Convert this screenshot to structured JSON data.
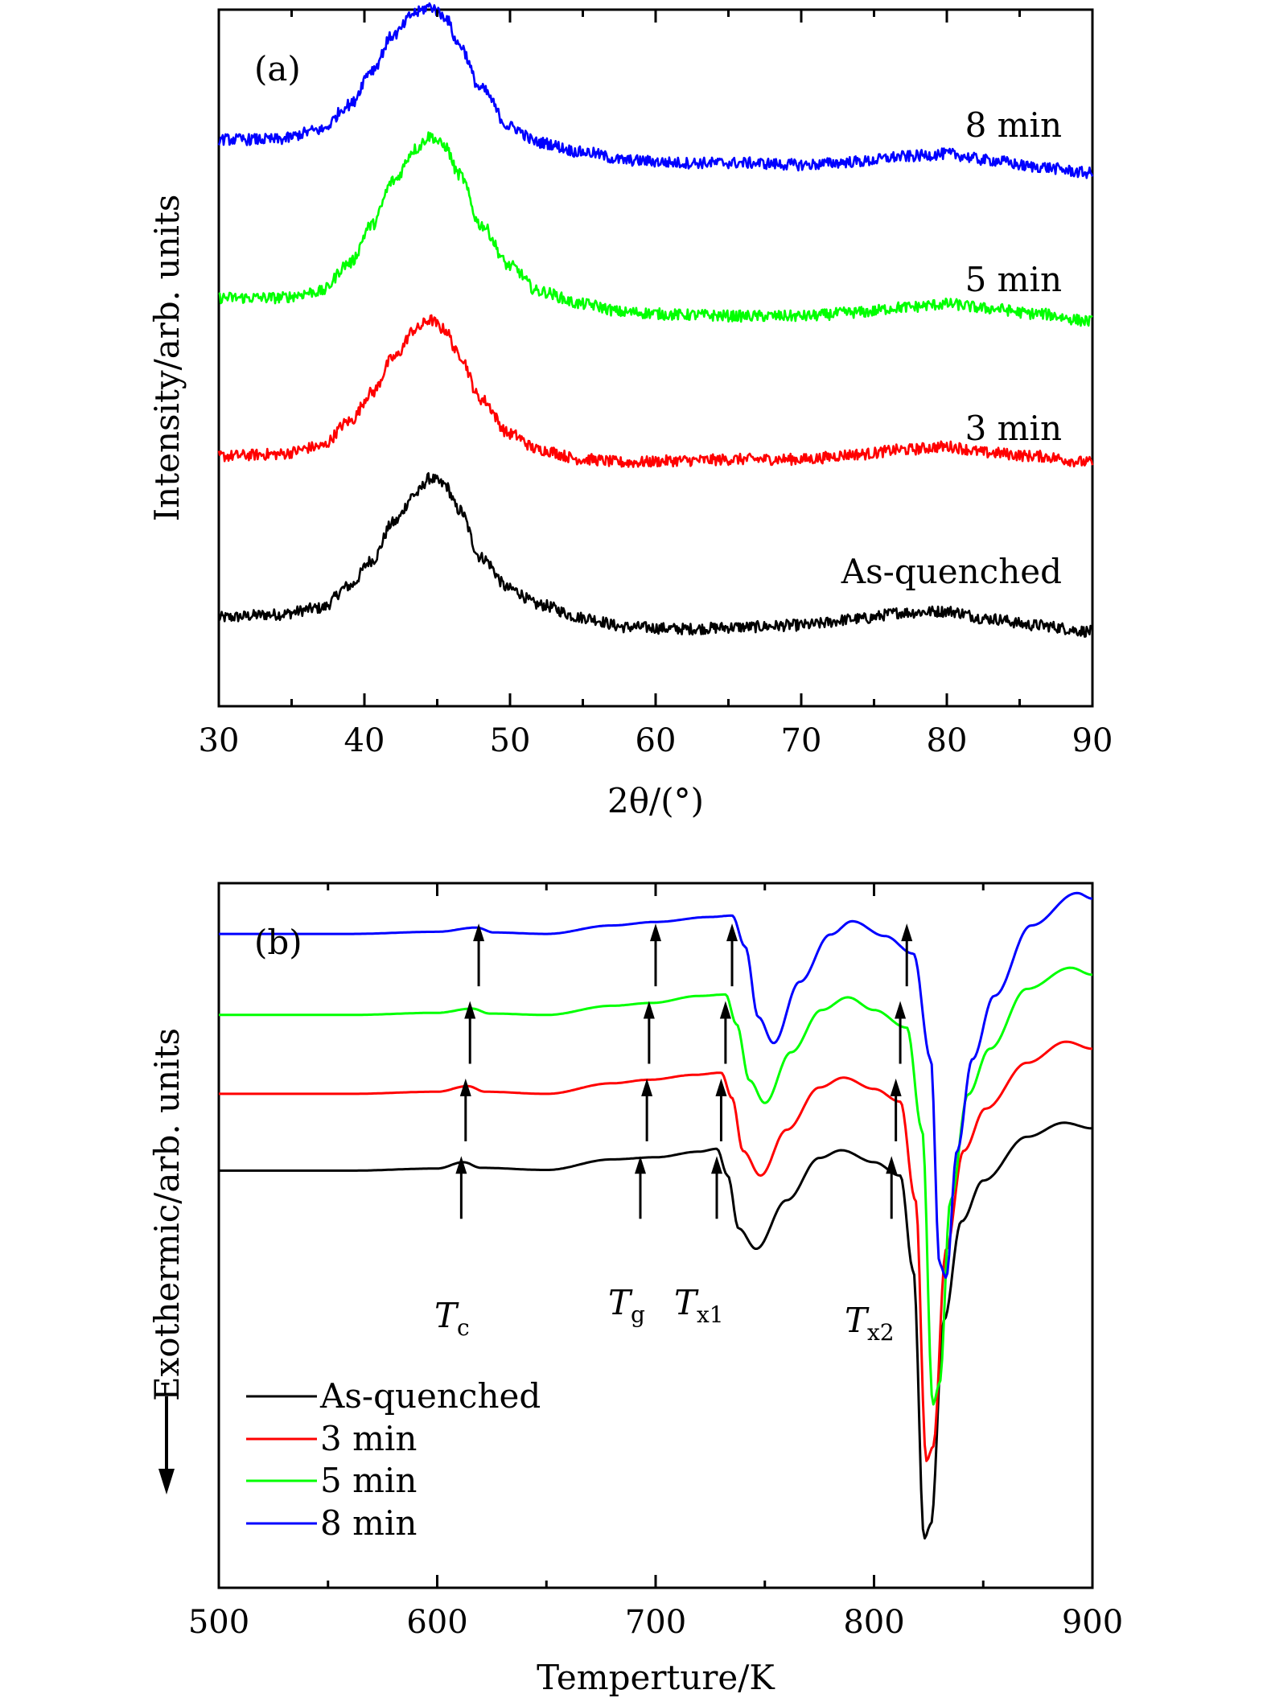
{
  "chart_data": [
    {
      "type": "line",
      "panel_label": "(a)",
      "xlabel": "2θ/(°)",
      "ylabel": "Intensity/arb. units",
      "xlim": [
        30,
        90
      ],
      "ylim": [
        0,
        11
      ],
      "x_ticks": [
        30,
        40,
        50,
        60,
        70,
        80,
        90
      ],
      "x_tick_labels": [
        "30",
        "40",
        "50",
        "60",
        "70",
        "80",
        "90"
      ],
      "y_ticks_shown": false,
      "grid": false,
      "series": [
        {
          "name": "As-quenched",
          "color": "#000000",
          "x": [
            30,
            34,
            37,
            39,
            40.5,
            42,
            43.5,
            44.5,
            45.5,
            46.5,
            48,
            50,
            52,
            55,
            58,
            62,
            66,
            70,
            74,
            77,
            80,
            83,
            86,
            90
          ],
          "values": [
            1.4,
            1.45,
            1.55,
            1.9,
            2.3,
            2.9,
            3.35,
            3.6,
            3.5,
            3.1,
            2.35,
            1.85,
            1.6,
            1.4,
            1.25,
            1.22,
            1.25,
            1.28,
            1.38,
            1.48,
            1.5,
            1.38,
            1.28,
            1.18
          ]
        },
        {
          "name": "3 min",
          "color": "#ff0000",
          "x": [
            30,
            34,
            37,
            39,
            40.5,
            42,
            43.5,
            44.5,
            45.5,
            46.5,
            48,
            50,
            52,
            55,
            58,
            62,
            66,
            70,
            74,
            77,
            80,
            83,
            86,
            90
          ],
          "values": [
            3.95,
            3.98,
            4.1,
            4.5,
            4.95,
            5.5,
            5.95,
            6.1,
            5.95,
            5.55,
            4.85,
            4.3,
            4.05,
            3.9,
            3.85,
            3.88,
            3.9,
            3.9,
            3.98,
            4.05,
            4.1,
            4.0,
            3.95,
            3.85
          ]
        },
        {
          "name": "5 min",
          "color": "#00ff00",
          "x": [
            30,
            34,
            37,
            39,
            40.5,
            42,
            43.5,
            44.5,
            45.5,
            46.5,
            48,
            50,
            52,
            55,
            58,
            62,
            66,
            70,
            74,
            77,
            80,
            83,
            86,
            90
          ],
          "values": [
            6.45,
            6.45,
            6.55,
            7.0,
            7.6,
            8.3,
            8.8,
            9.0,
            8.85,
            8.4,
            7.6,
            6.95,
            6.55,
            6.35,
            6.22,
            6.18,
            6.16,
            6.16,
            6.22,
            6.3,
            6.35,
            6.28,
            6.2,
            6.08
          ]
        },
        {
          "name": "8 min",
          "color": "#0000ff",
          "x": [
            30,
            34,
            37,
            39,
            40.5,
            42,
            43.5,
            44.5,
            45.5,
            46.5,
            48,
            50,
            52,
            55,
            58,
            62,
            66,
            70,
            74,
            77,
            80,
            83,
            86,
            90
          ],
          "values": [
            8.95,
            8.95,
            9.1,
            9.5,
            10.05,
            10.6,
            10.95,
            11.05,
            10.9,
            10.45,
            9.75,
            9.15,
            8.9,
            8.75,
            8.62,
            8.58,
            8.58,
            8.55,
            8.6,
            8.68,
            8.72,
            8.62,
            8.52,
            8.42
          ]
        }
      ],
      "series_labels": [
        "8 min",
        "5 min",
        "3 min",
        "As-quenched"
      ]
    },
    {
      "type": "line",
      "panel_label": "(b)",
      "xlabel": "Temperture/K",
      "ylabel": "Exothermic/arb. units",
      "xlim": [
        500,
        900
      ],
      "ylim": [
        0,
        100
      ],
      "x_ticks": [
        500,
        600,
        700,
        800,
        900
      ],
      "x_tick_labels": [
        "500",
        "600",
        "700",
        "800",
        "900"
      ],
      "y_ticks_shown": false,
      "grid": false,
      "legend_position": "bottom-left",
      "series": [
        {
          "name": "As-quenched",
          "color": "#000000",
          "x": [
            500,
            560,
            600,
            612,
            620,
            650,
            680,
            700,
            720,
            728,
            733,
            738,
            746,
            760,
            775,
            785,
            800,
            812,
            818,
            823,
            826,
            832,
            840,
            850,
            870,
            887,
            900
          ],
          "values": [
            59.2,
            59.2,
            59.5,
            60.4,
            59.6,
            59.3,
            60.8,
            61.1,
            61.9,
            62.3,
            58.5,
            51,
            48.1,
            55,
            61,
            62.1,
            60.4,
            58.5,
            45,
            7,
            9,
            38,
            52,
            57.8,
            64,
            66,
            65.2
          ]
        },
        {
          "name": "3 min",
          "color": "#ff0000",
          "x": [
            500,
            560,
            600,
            614,
            622,
            650,
            680,
            697,
            718,
            730,
            735,
            740,
            748,
            760,
            775,
            786,
            800,
            812,
            819,
            824,
            827,
            833,
            841,
            851,
            870,
            888,
            900
          ],
          "values": [
            70.1,
            70.1,
            70.4,
            71.2,
            70.4,
            70.1,
            71.6,
            72.1,
            72.8,
            73.1,
            69.5,
            62,
            58.5,
            65,
            71,
            72.4,
            70.8,
            69,
            55,
            18,
            20,
            48,
            62,
            68,
            74.5,
            77.5,
            76.5
          ]
        },
        {
          "name": "5 min",
          "color": "#00ff00",
          "x": [
            500,
            560,
            600,
            616,
            624,
            650,
            680,
            698,
            720,
            732,
            737,
            743,
            750,
            762,
            776,
            788,
            800,
            815,
            822,
            827,
            830,
            835,
            843,
            853,
            870,
            890,
            900
          ],
          "values": [
            81.3,
            81.3,
            81.6,
            82.2,
            81.5,
            81.3,
            82.6,
            83,
            84,
            84.2,
            80,
            72,
            68.8,
            76,
            82,
            83.8,
            82,
            79.5,
            65,
            26,
            29,
            55,
            70,
            76.5,
            85,
            88,
            87
          ]
        },
        {
          "name": "8 min",
          "color": "#0000ff",
          "x": [
            500,
            560,
            600,
            618,
            626,
            650,
            680,
            700,
            725,
            735,
            741,
            747,
            754,
            766,
            780,
            790,
            805,
            818,
            826,
            830,
            833,
            838,
            845,
            855,
            872,
            893,
            900
          ],
          "values": [
            92.8,
            92.8,
            93.1,
            93.7,
            93,
            92.8,
            94,
            94.5,
            95.2,
            95.4,
            91,
            81,
            77.3,
            86,
            92.7,
            94.6,
            92.5,
            90,
            75,
            46,
            44,
            62,
            75,
            84,
            94,
            98.6,
            97.8
          ]
        }
      ],
      "annotations": [
        {
          "base": "T",
          "sub": "c",
          "x": 611
        },
        {
          "base": "T",
          "sub": "g",
          "x": 693
        },
        {
          "base": "T",
          "sub": "x1",
          "x": 728
        },
        {
          "base": "T",
          "sub": "x2",
          "x": 808
        }
      ],
      "arrows_x": {
        "As-quenched": [
          611,
          693,
          728,
          808
        ],
        "3 min": [
          613,
          696,
          730,
          810
        ],
        "5 min": [
          615,
          697,
          732,
          812
        ],
        "8 min": [
          619,
          700,
          735,
          815
        ]
      },
      "arrow_tip_y": {
        "As-quenched": 61.5,
        "3 min": 72.5,
        "5 min": 83.5,
        "8 min": 94.5
      },
      "down_arrow_direction": "down"
    }
  ]
}
